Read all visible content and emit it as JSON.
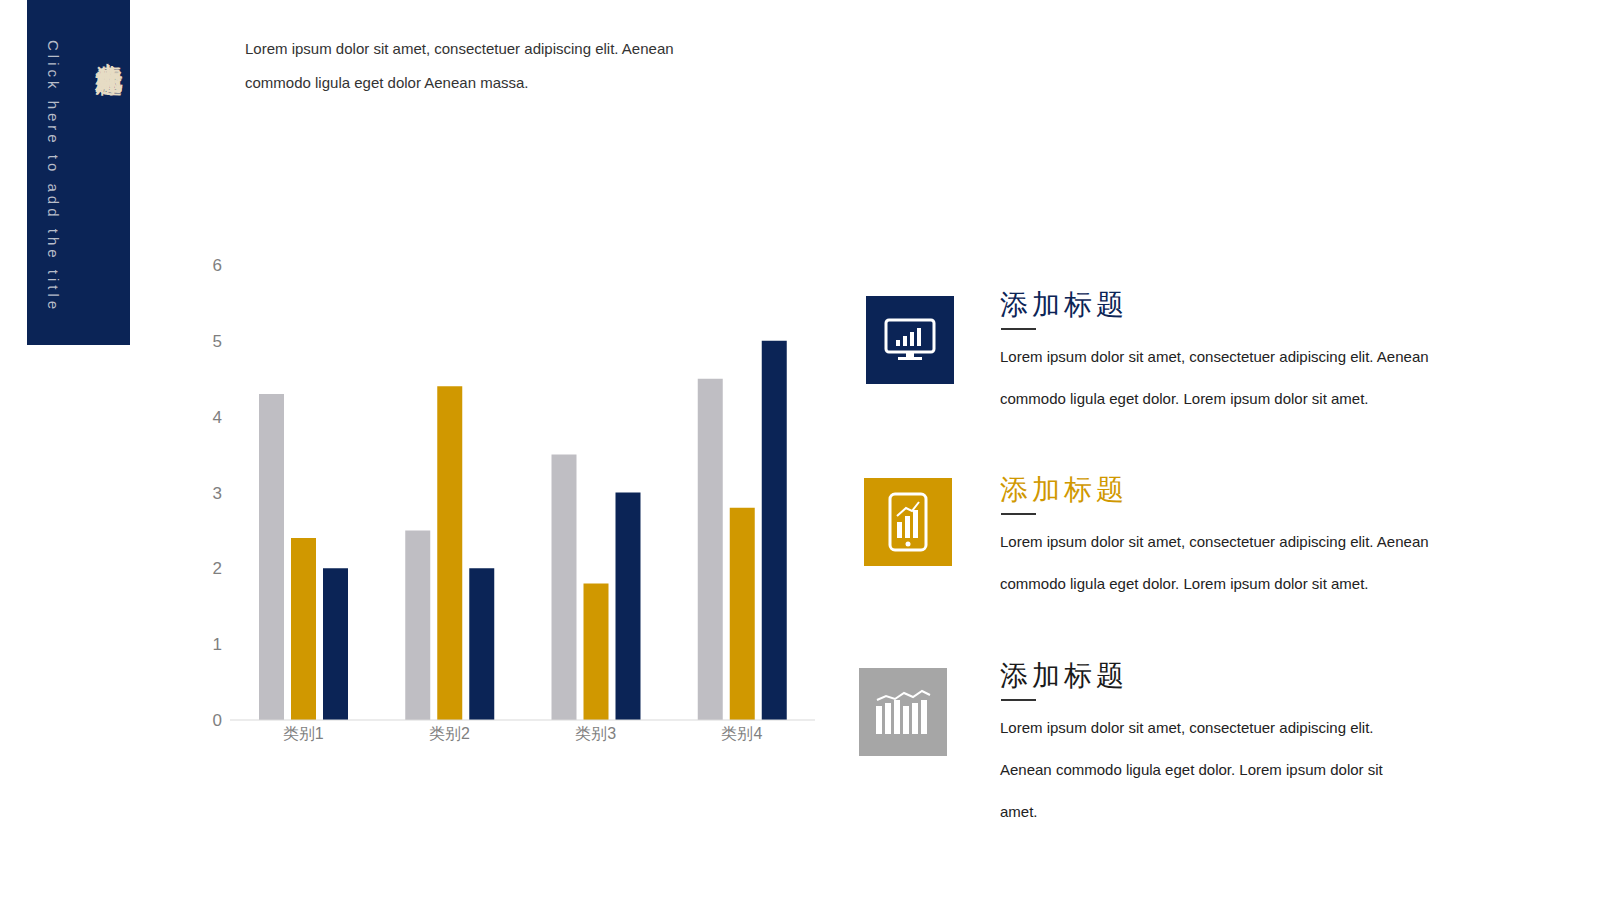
{
  "chart_data": {
    "type": "bar",
    "categories": [
      "类别1",
      "类别2",
      "类别3",
      "类别4"
    ],
    "series": [
      {
        "color": "#bfbec3",
        "values": [
          4.3,
          2.5,
          3.5,
          4.5
        ]
      },
      {
        "color": "#d09800",
        "values": [
          2.4,
          4.4,
          1.8,
          2.8
        ]
      },
      {
        "color": "#0b2456",
        "values": [
          2,
          2,
          3,
          5
        ]
      }
    ],
    "ylim": [
      0,
      6
    ],
    "yticks": [
      0,
      1,
      2,
      3,
      4,
      5,
      6
    ],
    "grid": false
  },
  "slide": {
    "title": "点击此处添加标题",
    "subtitle": "Click here to add the title",
    "intro": [
      "Lorem ipsum dolor sit amet, consectetuer adipiscing elit. Aenean",
      "commodo ligula eget dolor Aenean massa."
    ],
    "items": [
      {
        "title": "添加标题",
        "color": "#0b2456",
        "lines": [
          "Lorem ipsum dolor sit amet, consectetuer adipiscing elit. Aenean",
          "commodo ligula eget dolor. Lorem ipsum dolor sit amet."
        ]
      },
      {
        "title": "添加标题",
        "color": "#d09800",
        "lines": [
          "Lorem ipsum dolor sit amet, consectetuer adipiscing elit. Aenean",
          "commodo ligula eget dolor. Lorem ipsum dolor sit amet."
        ]
      },
      {
        "title": "添加标题",
        "color": "#a6a6a6",
        "lines": [
          "Lorem ipsum dolor sit amet, consectetuer adipiscing elit.",
          "Aenean commodo ligula eget dolor. Lorem ipsum dolor sit",
          "amet."
        ]
      }
    ]
  }
}
